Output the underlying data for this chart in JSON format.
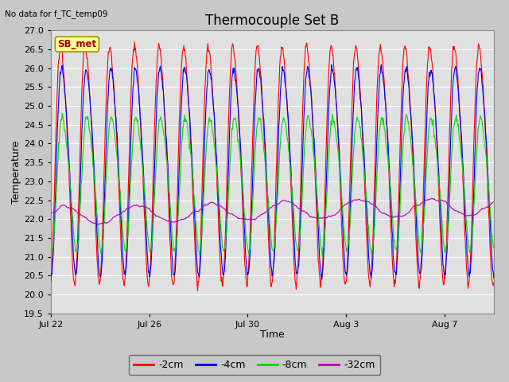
{
  "title": "Thermocouple Set B",
  "top_left_text": "No data for f_TC_temp09",
  "xlabel": "Time",
  "ylabel": "Temperature",
  "ylim": [
    19.5,
    27.0
  ],
  "yticks": [
    19.5,
    20.0,
    20.5,
    21.0,
    21.5,
    22.0,
    22.5,
    23.0,
    23.5,
    24.0,
    24.5,
    25.0,
    25.5,
    26.0,
    26.5,
    27.0
  ],
  "xtick_positions": [
    0,
    4,
    8,
    12,
    16
  ],
  "xtick_labels": [
    "Jul 22",
    "Jul 26",
    "Jul 30",
    "Aug 3",
    "Aug 7"
  ],
  "n_days": 18,
  "series": [
    {
      "label": "-2cm",
      "color": "#ff0000"
    },
    {
      "label": "-4cm",
      "color": "#0000ff"
    },
    {
      "label": "-8cm",
      "color": "#00dd00"
    },
    {
      "label": "-32cm",
      "color": "#bb00bb"
    }
  ],
  "legend_box_facecolor": "#ffff99",
  "legend_box_edgecolor": "#999900",
  "legend_box_label": "SB_met",
  "legend_box_text_color": "#aa0000",
  "fig_facecolor": "#c8c8c8",
  "plot_facecolor": "#e0e0e0",
  "grid_color": "#ffffff",
  "title_fontsize": 12,
  "label_fontsize": 9,
  "tick_fontsize": 8,
  "legend_fontsize": 9,
  "line_width": 0.8
}
